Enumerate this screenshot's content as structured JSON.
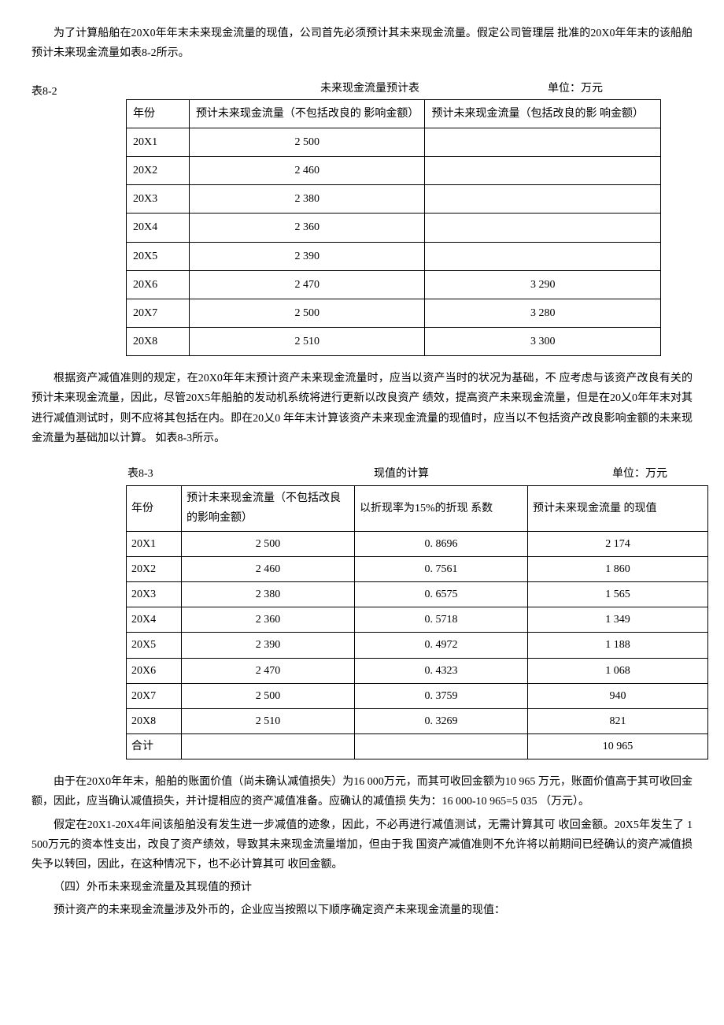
{
  "para1": "为了计算船舶在20X0年年末未来现金流量的现值，公司首先必须预计其未来现金流量。假定公司管理层  批准的20X0年年末的该船舶预计未来现金流量如表8-2所示。",
  "table1": {
    "label": "表8-2",
    "title": "未来现金流量预计表",
    "unit": "单位：万元",
    "head_year": "年份",
    "head_noimp": "预计未来现金流量（不包括改良的 影响金额）",
    "head_imp": "预计未来现金流量（包括改良的影  响金额）",
    "rows": [
      {
        "year": "20X1",
        "noimp": "2  500",
        "imp": ""
      },
      {
        "year": "20X2",
        "noimp": "2  460",
        "imp": ""
      },
      {
        "year": "20X3",
        "noimp": "2  380",
        "imp": ""
      },
      {
        "year": "20X4",
        "noimp": "2  360",
        "imp": ""
      },
      {
        "year": "20X5",
        "noimp": "2  390",
        "imp": ""
      },
      {
        "year": "20X6",
        "noimp": "2  470",
        "imp": "3  290"
      },
      {
        "year": "20X7",
        "noimp": "2  500",
        "imp": "3  280"
      },
      {
        "year": "20X8",
        "noimp": "2  510",
        "imp": "3  300"
      }
    ]
  },
  "para2": "根据资产减值准则的规定，在20X0年年末预计资产未来现金流量时，应当以资产当时的状况为基础，不  应考虑与该资产改良有关的预计未来现金流量，因此，尽管20X5年船舶的发动机系统将进行更新以改良资产  绩效，提高资产未来现金流量，但是在20乂0年年末对其进行减值测试时，则不应将其包括在内。即在20乂0 年年末计算该资产未来现金流量的现值时，应当以不包括资产改良影响金额的未来现金流量为基础加以计算。  如表8-3所示。",
  "table2": {
    "label": "表8-3",
    "title": "现值的计算",
    "unit": "单位：万元",
    "head_year": "年份",
    "head_cash": "预计未来现金流量（不包括改良的影响金额）",
    "head_factor": "以折现率为15%的折现  系数",
    "head_pv": "预计未来现金流量  的现值",
    "rows": [
      {
        "year": "20X1",
        "cash": "2  500",
        "factor": "0. 8696",
        "pv": "2  174"
      },
      {
        "year": "20X2",
        "cash": "2  460",
        "factor": "0. 7561",
        "pv": "1  860"
      },
      {
        "year": "20X3",
        "cash": "2  380",
        "factor": "0. 6575",
        "pv": "1  565"
      },
      {
        "year": "20X4",
        "cash": "2  360",
        "factor": "0. 5718",
        "pv": "1  349"
      },
      {
        "year": "20X5",
        "cash": "2  390",
        "factor": "0. 4972",
        "pv": "1  188"
      },
      {
        "year": "20X6",
        "cash": "2  470",
        "factor": "0. 4323",
        "pv": "1  068"
      },
      {
        "year": "20X7",
        "cash": "2  500",
        "factor": "0. 3759",
        "pv": "940"
      },
      {
        "year": "20X8",
        "cash": "2  510",
        "factor": "0. 3269",
        "pv": "821"
      }
    ],
    "total_label": "合计",
    "total_pv": "10  965"
  },
  "para3": "由于在20X0年年末，船舶的账面价值（尚未确认减值损失）为16 000万元，而其可收回金额为10 965 万元，账面价值高于其可收回金额，因此，应当确认减值损失，并计提相应的资产减值准备。应确认的减值损  失为：16  000-10  965=5  035 （万元）。",
  "para4": "假定在20X1-20X4年间该船舶没有发生进一步减值的迹象，因此，不必再进行减值测试，无需计算其可  收回金额。20X5年发生了  1  500万元的资本性支出，改良了资产绩效，导致其未来现金流量增加，但由于我  国资产减值准则不允许将以前期间已经确认的资产减值损失予以转回，因此，在这种情况下，也不必计算其可  收回金额。",
  "para5": "（四）外币未来现金流量及其现值的预计",
  "para6": "预计资产的未来现金流量涉及外币的，企业应当按照以下顺序确定资产未来现金流量的现值："
}
